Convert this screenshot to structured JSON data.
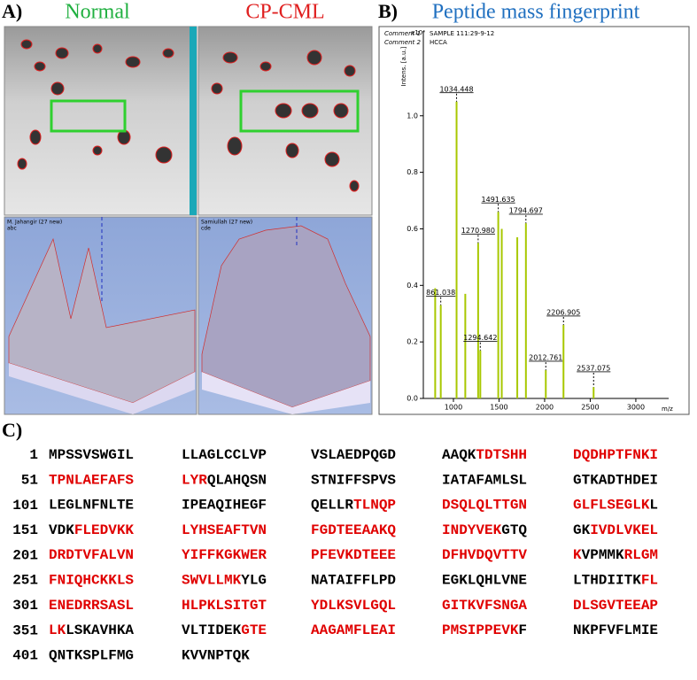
{
  "panel_a": {
    "label": "A)",
    "normal": "Normal",
    "cpcml": "CP-CML",
    "plot1_name": "M. Jahangir (27 new)",
    "plot1_code": "abc",
    "plot2_name": "Samiullah (27 new)",
    "plot2_code": "cde"
  },
  "panel_b": {
    "label": "B)",
    "title": "Peptide mass fingerprint"
  },
  "chart_data": {
    "type": "stick",
    "comment1_label": "Comment 1",
    "comment1": "SAMPLE 111:29-9-12",
    "comment2_label": "Comment 2",
    "comment2": "HCCA",
    "y_label": "Intens. [a.u.]",
    "y_exponent": "x10⁴",
    "x_label": "m/z",
    "xlim": [
      670,
      3360
    ],
    "xticks": [
      1000,
      1500,
      2000,
      2500,
      3000
    ],
    "ylim": [
      0,
      1.3
    ],
    "yticks": [
      {
        "value": 0,
        "label": "0.0"
      },
      {
        "value": 0.2,
        "label": "0.2"
      },
      {
        "value": 0.4,
        "label": "0.4"
      },
      {
        "value": 0.6,
        "label": "0.6"
      },
      {
        "value": 0.8,
        "label": "0.8"
      },
      {
        "value": 1.0,
        "label": "1.0"
      }
    ],
    "series": [
      {
        "name": "Peaks",
        "color": "#a8c800",
        "x": [
          800,
          861.038,
          1034.448,
          1130,
          1270.98,
          1294.642,
          1491.635,
          1530,
          1700,
          1794.697,
          2012.761,
          2206.905,
          2537.075
        ],
        "x_labels": [
          null,
          "861.038",
          "1034.448",
          null,
          "1270.980",
          "1294.642",
          "1491.635",
          null,
          null,
          "1794.697",
          "2012.761",
          "2206.905",
          "2537.075"
        ],
        "values": [
          0.39,
          0.33,
          1.05,
          0.37,
          0.55,
          0.17,
          0.66,
          0.6,
          0.57,
          0.62,
          0.1,
          0.26,
          0.04
        ]
      }
    ]
  },
  "panel_c": {
    "label": "C)",
    "rows": [
      {
        "start": "1",
        "blocks": [
          [
            [
              "MPSSVSWGIL",
              "#000"
            ]
          ],
          [
            [
              "LLAGLCCLVP",
              "#000"
            ]
          ],
          [
            [
              "VSLAEDPQGD",
              "#000"
            ]
          ],
          [
            [
              "AAQK",
              "#000"
            ],
            [
              "TDTSHH",
              "#e00000"
            ]
          ],
          [
            [
              "DQDHPTFNKI",
              "#e00000"
            ]
          ]
        ]
      },
      {
        "start": "51",
        "blocks": [
          [
            [
              "TPNLAEFAFS",
              "#e00000"
            ]
          ],
          [
            [
              "LYR",
              "#e00000"
            ],
            [
              "QLAHQSN",
              "#000"
            ]
          ],
          [
            [
              "STNIFFSPVS",
              "#000"
            ]
          ],
          [
            [
              "IATAFAMLSL",
              "#000"
            ]
          ],
          [
            [
              "GTKADTHDEI",
              "#000"
            ]
          ]
        ]
      },
      {
        "start": "101",
        "blocks": [
          [
            [
              "LEGLNFNLTE",
              "#000"
            ]
          ],
          [
            [
              "IPEAQIHEGF",
              "#000"
            ]
          ],
          [
            [
              "QELLR",
              "#000"
            ],
            [
              "TLNQP",
              "#e00000"
            ]
          ],
          [
            [
              "DSQLQLTTGN",
              "#e00000"
            ]
          ],
          [
            [
              "GLFLSEGLK",
              "#e00000"
            ],
            [
              "L",
              "#000"
            ]
          ]
        ]
      },
      {
        "start": "151",
        "blocks": [
          [
            [
              "VDK",
              "#000"
            ],
            [
              "FLEDVKK",
              "#e00000"
            ]
          ],
          [
            [
              "LYHSEAFTVN",
              "#e00000"
            ]
          ],
          [
            [
              "FGDTEEAAKQ",
              "#e00000"
            ]
          ],
          [
            [
              "INDYVEK",
              "#e00000"
            ],
            [
              "GTQ",
              "#000"
            ]
          ],
          [
            [
              "GK",
              "#000"
            ],
            [
              "IVDLVKEL",
              "#e00000"
            ]
          ]
        ]
      },
      {
        "start": "201",
        "blocks": [
          [
            [
              "DRDTVFALVN",
              "#e00000"
            ]
          ],
          [
            [
              "YIFFKGKWER",
              "#e00000"
            ]
          ],
          [
            [
              "PFEVKDTEEE",
              "#e00000"
            ]
          ],
          [
            [
              "DFHVDQVTTV",
              "#e00000"
            ]
          ],
          [
            [
              "K",
              "#e00000"
            ],
            [
              "VPMMK",
              "#000"
            ],
            [
              "RLGM",
              "#e00000"
            ]
          ]
        ]
      },
      {
        "start": "251",
        "blocks": [
          [
            [
              "FNIQHCKKLS",
              "#e00000"
            ]
          ],
          [
            [
              "SWVLLMK",
              "#e00000"
            ],
            [
              "YLG",
              "#000"
            ]
          ],
          [
            [
              "NATAIFFLPD",
              "#000"
            ]
          ],
          [
            [
              "EGKLQHLVNE",
              "#000"
            ]
          ],
          [
            [
              "LTHDIITK",
              "#000"
            ],
            [
              "FL",
              "#e00000"
            ]
          ]
        ]
      },
      {
        "start": "301",
        "blocks": [
          [
            [
              "ENEDRRSASL",
              "#e00000"
            ]
          ],
          [
            [
              "HLPKLSITGT",
              "#e00000"
            ]
          ],
          [
            [
              "YDLKSVLGQL",
              "#e00000"
            ]
          ],
          [
            [
              "GITKVFSNGA",
              "#e00000"
            ]
          ],
          [
            [
              "DLSGVTEEAP",
              "#e00000"
            ]
          ]
        ]
      },
      {
        "start": "351",
        "blocks": [
          [
            [
              "LK",
              "#e00000"
            ],
            [
              "LSKAVHKA",
              "#000"
            ]
          ],
          [
            [
              "VLTIDEK",
              "#000"
            ],
            [
              "GTE",
              "#e00000"
            ]
          ],
          [
            [
              "AAGAMFLEAI",
              "#e00000"
            ]
          ],
          [
            [
              "PMSIPPEVK",
              "#e00000"
            ],
            [
              "F",
              "#000"
            ]
          ],
          [
            [
              "NKPFVFLMIE",
              "#000"
            ]
          ]
        ]
      },
      {
        "start": "401",
        "blocks": [
          [
            [
              "QNTKSPLFMG",
              "#000"
            ]
          ],
          [
            [
              "KVVNPTQK",
              "#000"
            ]
          ]
        ]
      }
    ]
  }
}
